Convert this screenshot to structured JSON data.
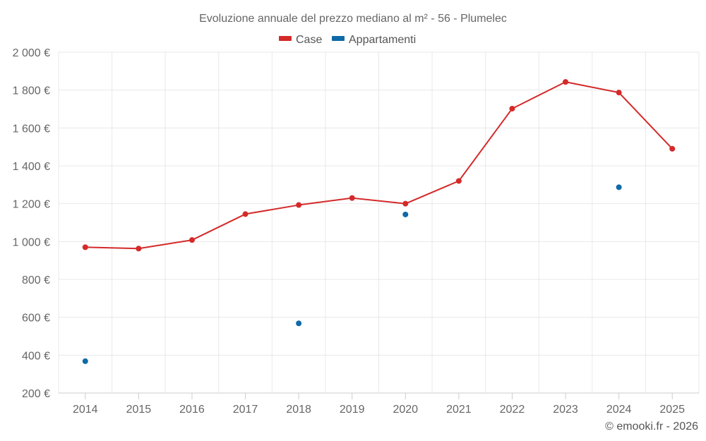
{
  "chart_data": {
    "type": "line",
    "title": "Evoluzione annuale del prezzo mediano al m² - 56 - Plumelec",
    "categories": [
      "2014",
      "2015",
      "2016",
      "2017",
      "2018",
      "2019",
      "2020",
      "2021",
      "2022",
      "2023",
      "2024",
      "2025"
    ],
    "series": [
      {
        "name": "Case",
        "color": "#d42a2a",
        "style": "line-with-markers",
        "values": [
          970,
          963,
          1008,
          1145,
          1193,
          1230,
          1200,
          1320,
          1702,
          1843,
          1787,
          1490
        ]
      },
      {
        "name": "Appartamenti",
        "color": "#0e6aa8",
        "style": "markers-only",
        "values": [
          368,
          null,
          null,
          null,
          568,
          null,
          1143,
          null,
          null,
          null,
          1287,
          null
        ]
      }
    ],
    "yticks": [
      "200 €",
      "400 €",
      "600 €",
      "800 €",
      "1 000 €",
      "1 200 €",
      "1 400 €",
      "1 600 €",
      "1 800 €",
      "2 000 €"
    ],
    "ylim": [
      200,
      2000
    ],
    "ystep": 200,
    "xlabel": "",
    "ylabel": "",
    "grid": true,
    "legend_position": "top-center"
  },
  "credit": "© emooki.fr - 2026"
}
